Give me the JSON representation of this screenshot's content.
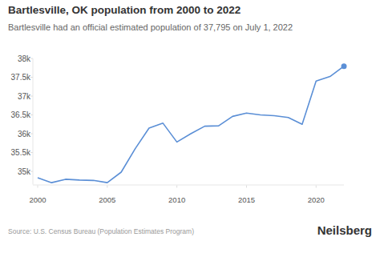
{
  "chart_data": {
    "type": "line",
    "title": "Bartlesville, OK population from 2000 to 2022",
    "subtitle": "Bartlesville had an official estimated population of 37,795 on July 1, 2022",
    "source": "Source: U.S. Census Bureau (Population Estimates Program)",
    "brand": "Neilsberg",
    "x": [
      2000,
      2001,
      2002,
      2003,
      2004,
      2005,
      2006,
      2007,
      2008,
      2009,
      2010,
      2011,
      2012,
      2013,
      2014,
      2015,
      2016,
      2017,
      2018,
      2019,
      2020,
      2021,
      2022
    ],
    "values": [
      34830,
      34700,
      34790,
      34770,
      34760,
      34700,
      34980,
      35600,
      36150,
      36280,
      35780,
      36000,
      36200,
      36210,
      36460,
      36550,
      36500,
      36480,
      36430,
      36250,
      37400,
      37520,
      37795
    ],
    "color": "#5b8fd6",
    "xlim": [
      2000,
      2022
    ],
    "xticks": [
      2000,
      2005,
      2010,
      2015,
      2020
    ],
    "ylim": [
      34650,
      38000
    ],
    "yticks": [
      {
        "value": 35000,
        "label": "35k"
      },
      {
        "value": 35500,
        "label": "35.5k"
      },
      {
        "value": 36000,
        "label": "36k"
      },
      {
        "value": 36500,
        "label": "36.5k"
      },
      {
        "value": 37000,
        "label": "37k"
      },
      {
        "value": 37500,
        "label": "37.5k"
      },
      {
        "value": 38000,
        "label": "38k"
      }
    ],
    "grid": false
  }
}
